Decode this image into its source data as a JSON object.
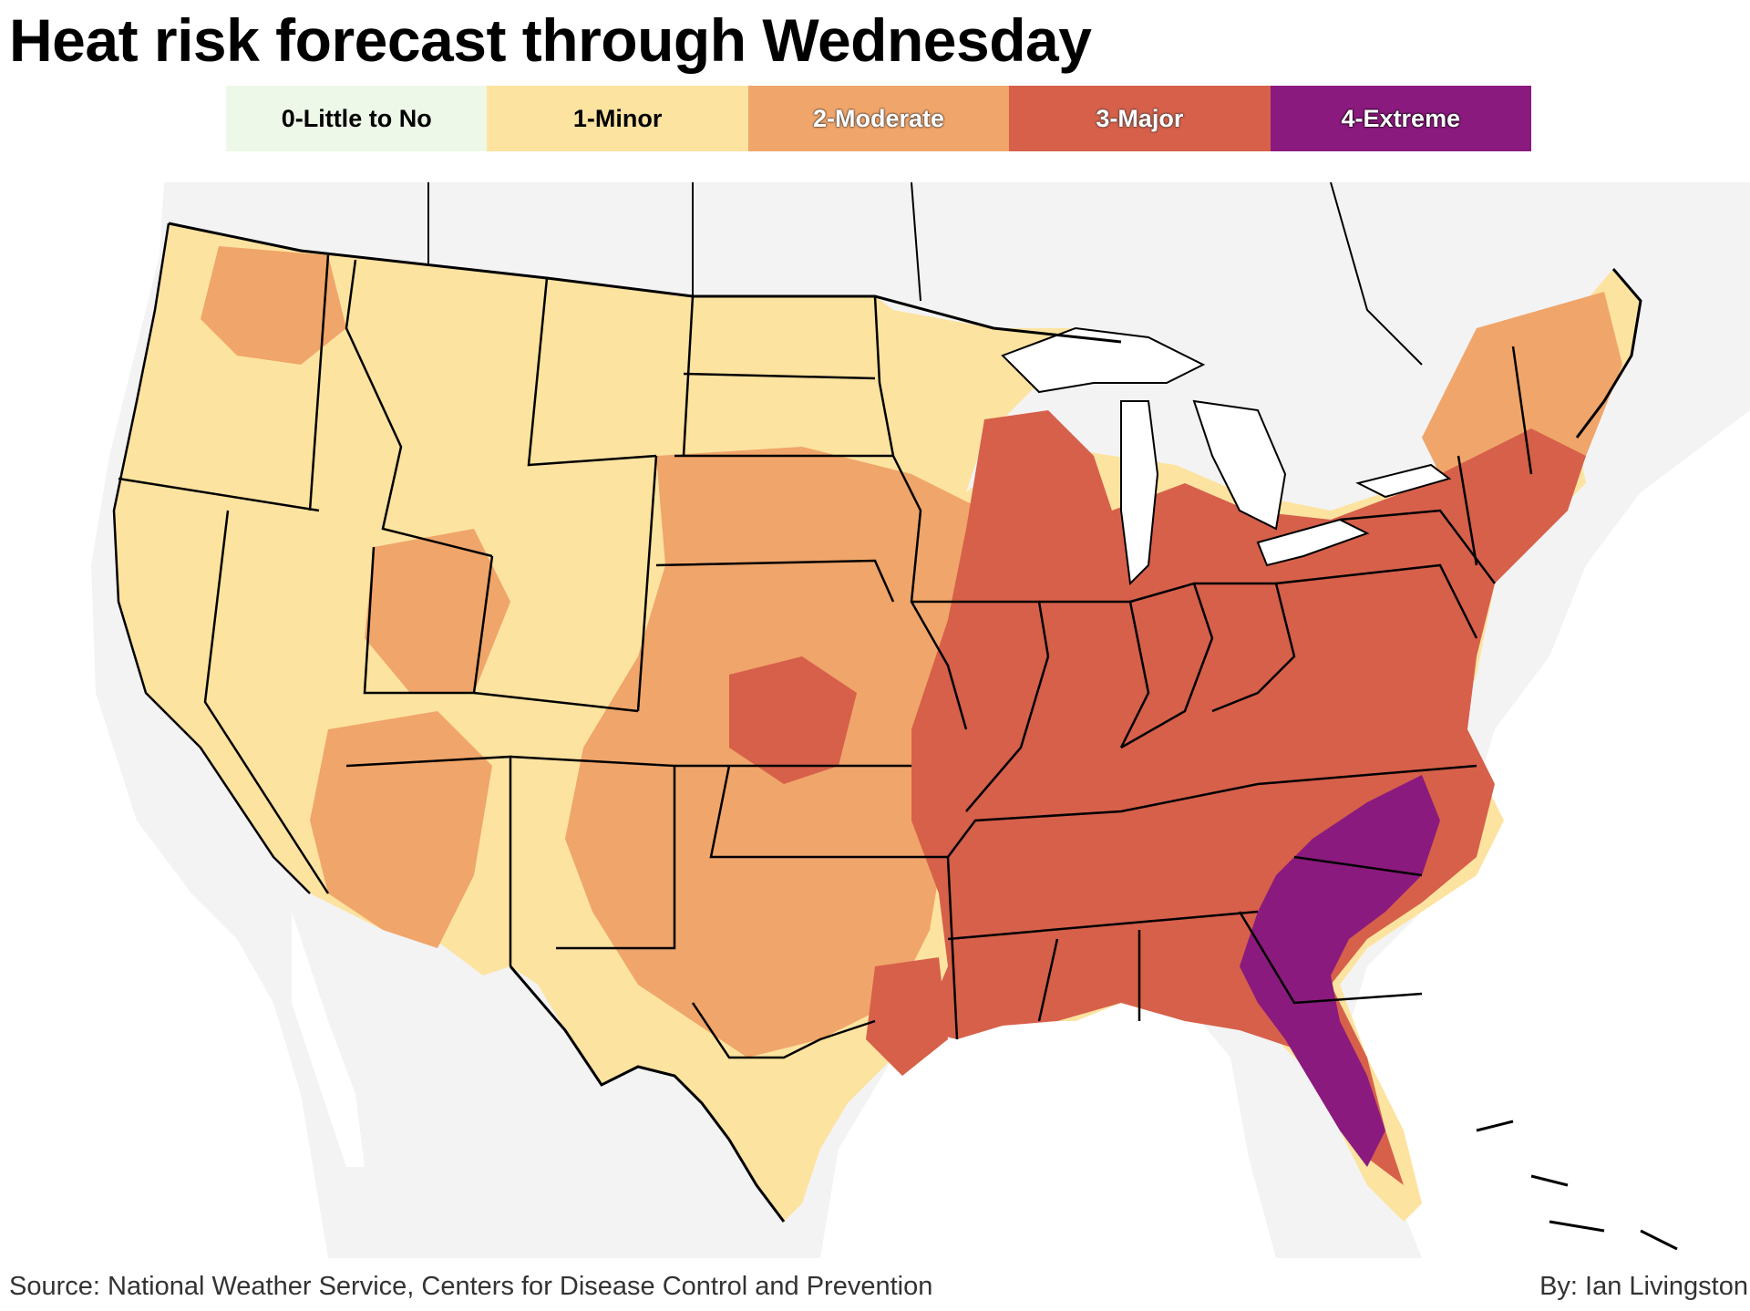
{
  "title": "Heat risk forecast through Wednesday",
  "legend": [
    {
      "label": "0-Little to No",
      "color": "#eef8e8"
    },
    {
      "label": "1-Minor",
      "color": "#fde3a0"
    },
    {
      "label": "2-Moderate",
      "color": "#f0a56a"
    },
    {
      "label": "3-Major",
      "color": "#d6604a"
    },
    {
      "label": "4-Extreme",
      "color": "#8a1a7e"
    }
  ],
  "colors": {
    "background_land": "#f3f3f3",
    "water": "#ffffff",
    "border": "#000000"
  },
  "source": "Source: National Weather Service, Centers for Disease Control and Prevention",
  "byline": "By: Ian Livingston"
}
